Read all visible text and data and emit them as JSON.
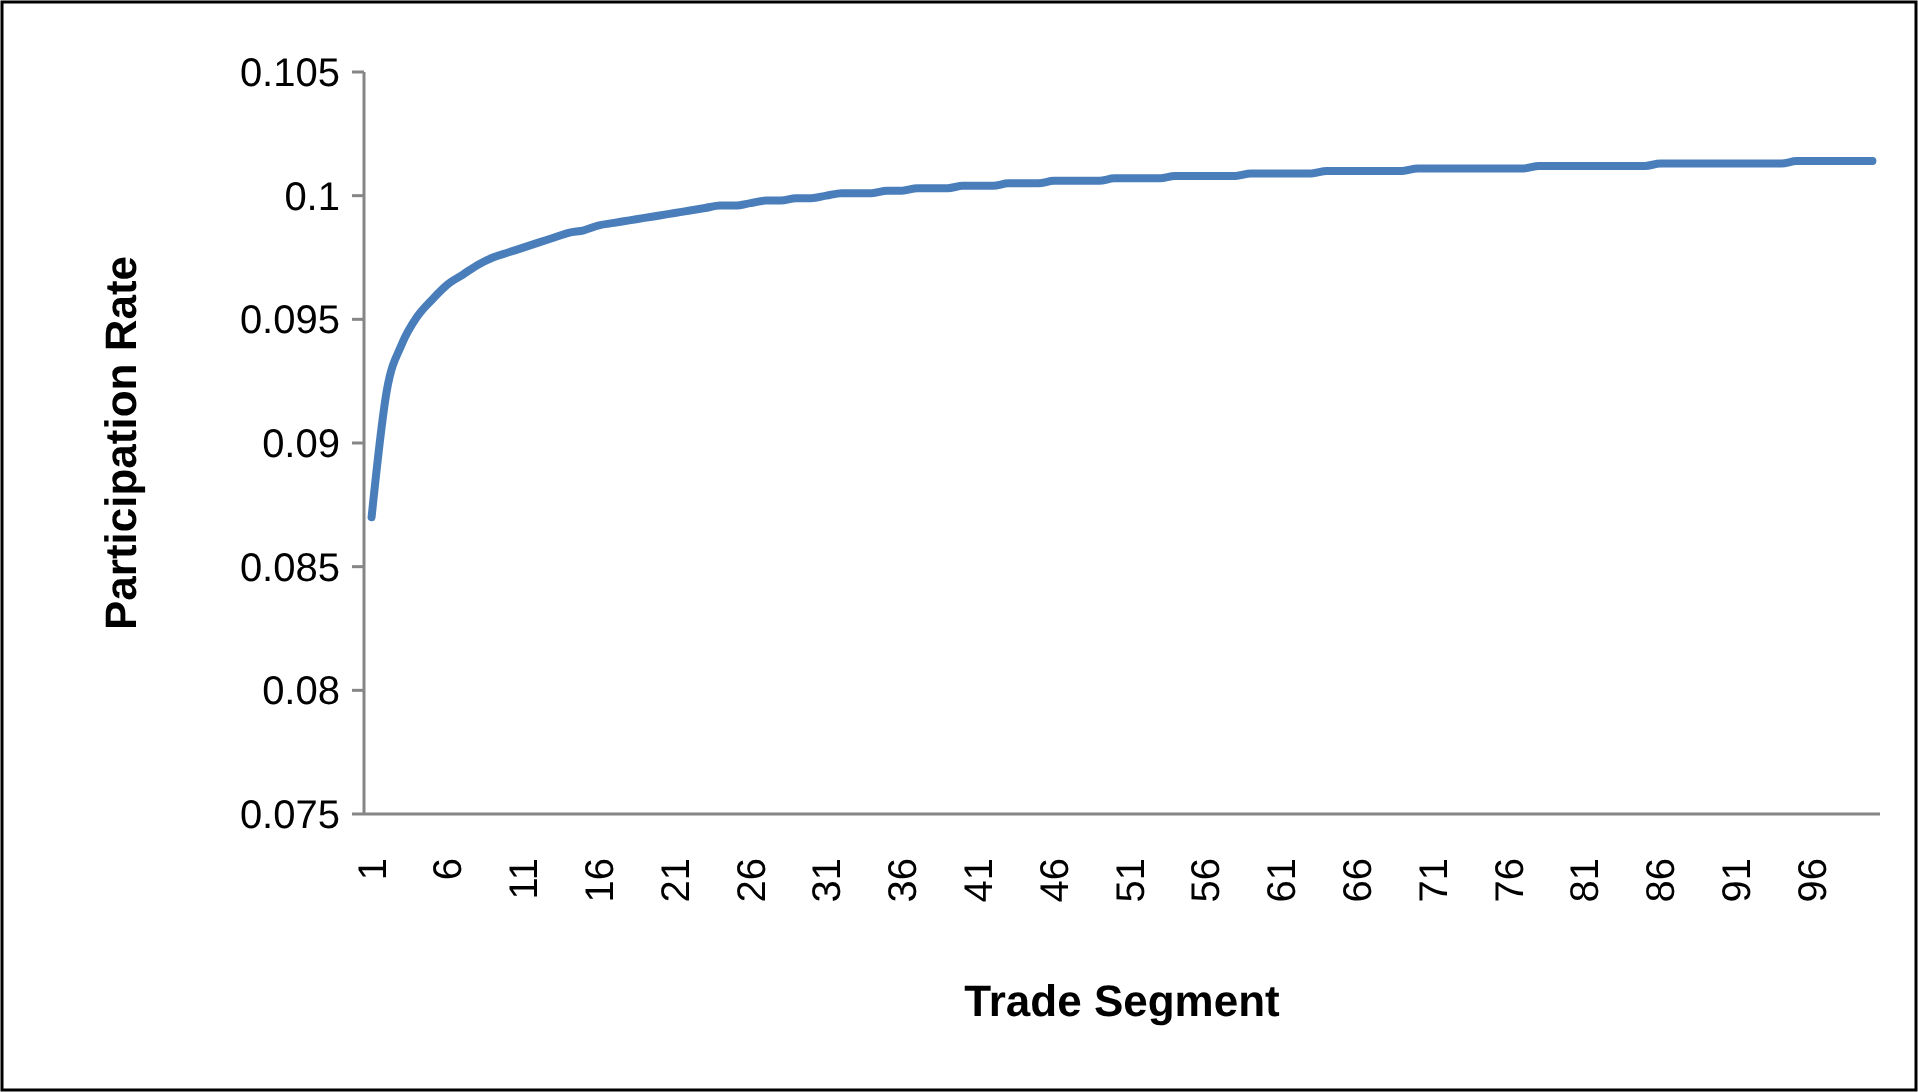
{
  "chart_data": {
    "type": "line",
    "xlabel": "Trade Segment",
    "ylabel": "Participation Rate",
    "categories": [
      "1",
      null,
      null,
      null,
      null,
      "6",
      null,
      null,
      null,
      null,
      "11",
      null,
      null,
      null,
      null,
      "16",
      null,
      null,
      null,
      null,
      "21",
      null,
      null,
      null,
      null,
      "26",
      null,
      null,
      null,
      null,
      "31",
      null,
      null,
      null,
      null,
      "36",
      null,
      null,
      null,
      null,
      "41",
      null,
      null,
      null,
      null,
      "46",
      null,
      null,
      null,
      null,
      "51",
      null,
      null,
      null,
      null,
      "56",
      null,
      null,
      null,
      null,
      "61",
      null,
      null,
      null,
      null,
      "66",
      null,
      null,
      null,
      null,
      "71",
      null,
      null,
      null,
      null,
      "76",
      null,
      null,
      null,
      null,
      "81",
      null,
      null,
      null,
      null,
      "86",
      null,
      null,
      null,
      null,
      "91",
      null,
      null,
      null,
      null,
      "96",
      null,
      null,
      null,
      null
    ],
    "series": [
      {
        "color": "#4a7ebb",
        "values": [
          0.087,
          0.0921,
          0.094,
          0.0951,
          0.0958,
          0.0964,
          0.0968,
          0.0972,
          0.0975,
          0.0977,
          0.0979,
          0.0981,
          0.0983,
          0.0985,
          0.0986,
          0.0988,
          0.0989,
          0.099,
          0.0991,
          0.0992,
          0.0993,
          0.0994,
          0.0995,
          0.0996,
          0.0996,
          0.0997,
          0.0998,
          0.0998,
          0.0999,
          0.0999,
          0.1,
          0.1001,
          0.1001,
          0.1001,
          0.1002,
          0.1002,
          0.1003,
          0.1003,
          0.1003,
          0.1004,
          0.1004,
          0.1004,
          0.1005,
          0.1005,
          0.1005,
          0.1006,
          0.1006,
          0.1006,
          0.1006,
          0.1007,
          0.1007,
          0.1007,
          0.1007,
          0.1008,
          0.1008,
          0.1008,
          0.1008,
          0.1008,
          0.1009,
          0.1009,
          0.1009,
          0.1009,
          0.1009,
          0.101,
          0.101,
          0.101,
          0.101,
          0.101,
          0.101,
          0.1011,
          0.1011,
          0.1011,
          0.1011,
          0.1011,
          0.1011,
          0.1011,
          0.1011,
          0.1012,
          0.1012,
          0.1012,
          0.1012,
          0.1012,
          0.1012,
          0.1012,
          0.1012,
          0.1013,
          0.1013,
          0.1013,
          0.1013,
          0.1013,
          0.1013,
          0.1013,
          0.1013,
          0.1013,
          0.1014,
          0.1014,
          0.1014,
          0.1014,
          0.1014,
          0.1014
        ]
      }
    ],
    "ylim": [
      0.075,
      0.105
    ],
    "yticks": [
      0.075,
      0.08,
      0.085,
      0.09,
      0.095,
      0.1,
      0.105
    ],
    "grid": false,
    "marker": "none",
    "line_style": "solid"
  }
}
